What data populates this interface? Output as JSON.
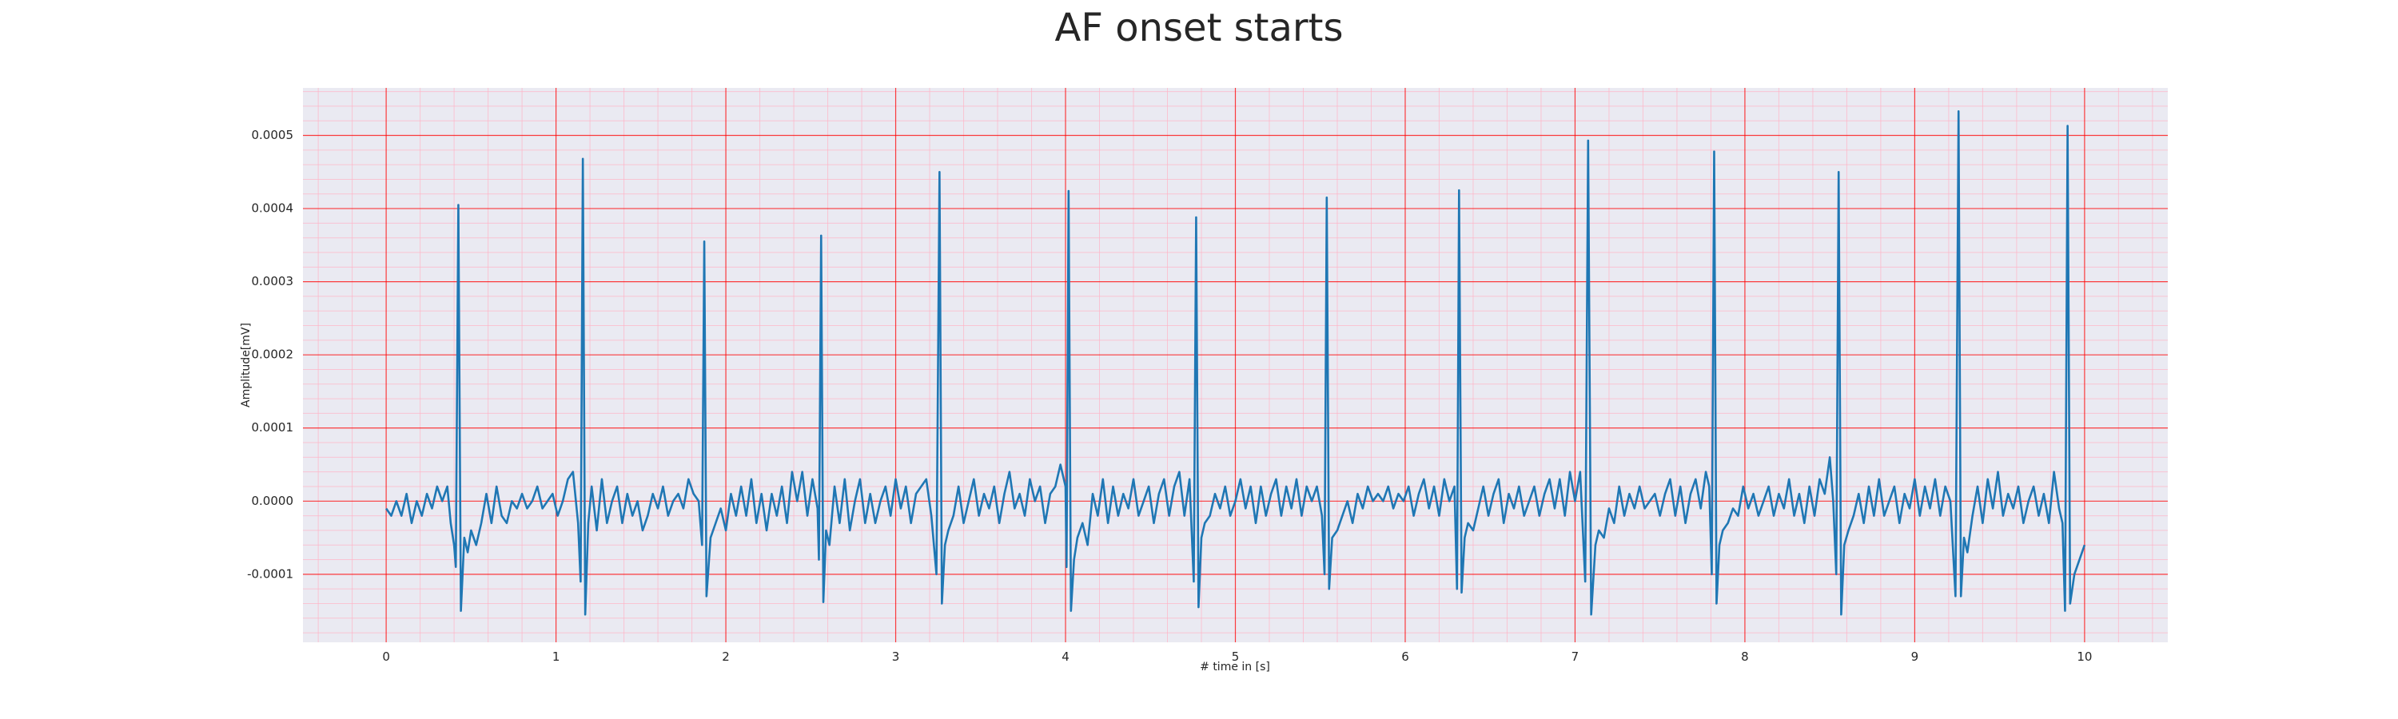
{
  "chart_data": {
    "type": "line",
    "title": "AF onset starts",
    "xlabel": "# time in [s]",
    "ylabel": "Amplitude[mV]",
    "color": "#1f77b4",
    "grid": true,
    "grid_color": "#ff0000",
    "minor_grid": {
      "x": 5,
      "y": 5,
      "color": "#ffb3c6"
    },
    "background": "#eaeaf2",
    "xlim": [
      -0.49,
      10.49
    ],
    "ylim": [
      -0.000193,
      0.000565
    ],
    "xticks": [
      0,
      1,
      2,
      3,
      4,
      5,
      6,
      7,
      8,
      9,
      10
    ],
    "yticks": [
      -0.0001,
      {
        "value": 0,
        "label": "0.0000"
      },
      0.0001,
      0.0002,
      0.0003,
      0.0004,
      0.0005
    ],
    "x": [
      0,
      0.03,
      0.06,
      0.09,
      0.12,
      0.15,
      0.18,
      0.21,
      0.24,
      0.27,
      0.3,
      0.33,
      0.36,
      0.38,
      0.4,
      0.41,
      0.425,
      0.44,
      0.46,
      0.48,
      0.5,
      0.53,
      0.56,
      0.59,
      0.62,
      0.65,
      0.68,
      0.71,
      0.74,
      0.77,
      0.8,
      0.83,
      0.86,
      0.89,
      0.92,
      0.95,
      0.98,
      1.01,
      1.04,
      1.07,
      1.1,
      1.13,
      1.145,
      1.158,
      1.172,
      1.19,
      1.21,
      1.24,
      1.27,
      1.3,
      1.33,
      1.36,
      1.39,
      1.42,
      1.45,
      1.48,
      1.51,
      1.54,
      1.57,
      1.6,
      1.63,
      1.66,
      1.69,
      1.72,
      1.75,
      1.78,
      1.81,
      1.84,
      1.86,
      1.873,
      1.886,
      1.91,
      1.94,
      1.97,
      2.0,
      2.03,
      2.06,
      2.09,
      2.12,
      2.15,
      2.18,
      2.21,
      2.24,
      2.27,
      2.3,
      2.33,
      2.36,
      2.39,
      2.42,
      2.45,
      2.48,
      2.51,
      2.54,
      2.548,
      2.561,
      2.574,
      2.59,
      2.61,
      2.64,
      2.67,
      2.7,
      2.73,
      2.76,
      2.79,
      2.82,
      2.85,
      2.88,
      2.91,
      2.94,
      2.97,
      3.0,
      3.03,
      3.06,
      3.09,
      3.12,
      3.15,
      3.18,
      3.21,
      3.24,
      3.258,
      3.272,
      3.29,
      3.31,
      3.34,
      3.37,
      3.4,
      3.43,
      3.46,
      3.49,
      3.52,
      3.55,
      3.58,
      3.61,
      3.64,
      3.67,
      3.7,
      3.73,
      3.76,
      3.79,
      3.82,
      3.85,
      3.88,
      3.91,
      3.94,
      3.97,
      4.0,
      4.006,
      4.018,
      4.032,
      4.05,
      4.07,
      4.1,
      4.13,
      4.16,
      4.19,
      4.22,
      4.25,
      4.28,
      4.31,
      4.34,
      4.37,
      4.4,
      4.43,
      4.46,
      4.49,
      4.52,
      4.55,
      4.58,
      4.61,
      4.64,
      4.67,
      4.7,
      4.73,
      4.755,
      4.769,
      4.783,
      4.8,
      4.82,
      4.85,
      4.88,
      4.91,
      4.94,
      4.97,
      5.0,
      5.03,
      5.06,
      5.09,
      5.12,
      5.15,
      5.18,
      5.21,
      5.24,
      5.27,
      5.3,
      5.33,
      5.36,
      5.39,
      5.42,
      5.45,
      5.48,
      5.51,
      5.525,
      5.538,
      5.552,
      5.57,
      5.6,
      5.63,
      5.66,
      5.69,
      5.72,
      5.75,
      5.78,
      5.81,
      5.84,
      5.87,
      5.9,
      5.93,
      5.96,
      5.99,
      6.02,
      6.05,
      6.08,
      6.11,
      6.14,
      6.17,
      6.2,
      6.23,
      6.26,
      6.29,
      6.305,
      6.317,
      6.332,
      6.35,
      6.37,
      6.4,
      6.43,
      6.46,
      6.49,
      6.52,
      6.55,
      6.58,
      6.61,
      6.64,
      6.67,
      6.7,
      6.73,
      6.76,
      6.79,
      6.82,
      6.85,
      6.88,
      6.91,
      6.94,
      6.97,
      7.0,
      7.03,
      7.06,
      7.077,
      7.095,
      7.12,
      7.14,
      7.17,
      7.2,
      7.23,
      7.26,
      7.29,
      7.32,
      7.35,
      7.38,
      7.41,
      7.44,
      7.47,
      7.5,
      7.53,
      7.56,
      7.59,
      7.62,
      7.65,
      7.68,
      7.71,
      7.74,
      7.77,
      7.79,
      7.805,
      7.819,
      7.833,
      7.85,
      7.87,
      7.9,
      7.93,
      7.96,
      7.99,
      8.02,
      8.05,
      8.08,
      8.11,
      8.14,
      8.17,
      8.2,
      8.23,
      8.26,
      8.29,
      8.32,
      8.35,
      8.38,
      8.41,
      8.44,
      8.47,
      8.5,
      8.52,
      8.538,
      8.552,
      8.567,
      8.585,
      8.61,
      8.64,
      8.67,
      8.7,
      8.73,
      8.76,
      8.79,
      8.82,
      8.85,
      8.88,
      8.91,
      8.94,
      8.97,
      9.0,
      9.03,
      9.06,
      9.09,
      9.12,
      9.15,
      9.18,
      9.21,
      9.24,
      9.258,
      9.272,
      9.29,
      9.31,
      9.34,
      9.37,
      9.4,
      9.43,
      9.46,
      9.49,
      9.52,
      9.55,
      9.58,
      9.61,
      9.64,
      9.67,
      9.7,
      9.73,
      9.76,
      9.79,
      9.82,
      9.85,
      9.87,
      9.885,
      9.9,
      9.915,
      9.94,
      9.97,
      10.0
    ],
    "values": [
      -1e-05,
      -2e-05,
      0,
      -2e-05,
      1e-05,
      -3e-05,
      0,
      -2e-05,
      1e-05,
      -1e-05,
      2e-05,
      0,
      2e-05,
      -3e-05,
      -6e-05,
      -9e-05,
      0.000405,
      -0.00015,
      -5e-05,
      -7e-05,
      -4e-05,
      -6e-05,
      -3e-05,
      1e-05,
      -3e-05,
      2e-05,
      -2e-05,
      -3e-05,
      0,
      -1e-05,
      1e-05,
      -1e-05,
      0,
      2e-05,
      -1e-05,
      0,
      1e-05,
      -2e-05,
      0,
      3e-05,
      4e-05,
      -3e-05,
      -0.00011,
      0.000468,
      -0.000155,
      -3e-05,
      2e-05,
      -4e-05,
      3e-05,
      -3e-05,
      0,
      2e-05,
      -3e-05,
      1e-05,
      -2e-05,
      0,
      -4e-05,
      -2e-05,
      1e-05,
      -1e-05,
      2e-05,
      -2e-05,
      0,
      1e-05,
      -1e-05,
      3e-05,
      1e-05,
      0,
      -6e-05,
      0.000355,
      -0.00013,
      -5e-05,
      -3e-05,
      -1e-05,
      -4e-05,
      1e-05,
      -2e-05,
      2e-05,
      -2e-05,
      3e-05,
      -3e-05,
      1e-05,
      -4e-05,
      1e-05,
      -2e-05,
      2e-05,
      -3e-05,
      4e-05,
      0,
      4e-05,
      -2e-05,
      3e-05,
      -1e-05,
      -8e-05,
      0.000363,
      -0.000138,
      -4e-05,
      -6e-05,
      2e-05,
      -3e-05,
      3e-05,
      -4e-05,
      0,
      3e-05,
      -3e-05,
      1e-05,
      -3e-05,
      0,
      2e-05,
      -2e-05,
      3e-05,
      -1e-05,
      2e-05,
      -3e-05,
      1e-05,
      2e-05,
      3e-05,
      -2e-05,
      -0.0001,
      0.00045,
      -0.00014,
      -6e-05,
      -4e-05,
      -2e-05,
      2e-05,
      -3e-05,
      0,
      3e-05,
      -2e-05,
      1e-05,
      -1e-05,
      2e-05,
      -3e-05,
      1e-05,
      4e-05,
      -1e-05,
      1e-05,
      -2e-05,
      3e-05,
      0,
      2e-05,
      -3e-05,
      1e-05,
      2e-05,
      5e-05,
      2e-05,
      -9e-05,
      0.000424,
      -0.00015,
      -8e-05,
      -5e-05,
      -3e-05,
      -6e-05,
      1e-05,
      -2e-05,
      3e-05,
      -3e-05,
      2e-05,
      -2e-05,
      1e-05,
      -1e-05,
      3e-05,
      -2e-05,
      0,
      2e-05,
      -3e-05,
      1e-05,
      3e-05,
      -2e-05,
      2e-05,
      4e-05,
      -2e-05,
      3e-05,
      -0.00011,
      0.000388,
      -0.000145,
      -5e-05,
      -3e-05,
      -2e-05,
      1e-05,
      -1e-05,
      2e-05,
      -2e-05,
      0,
      3e-05,
      -1e-05,
      2e-05,
      -3e-05,
      2e-05,
      -2e-05,
      1e-05,
      3e-05,
      -2e-05,
      2e-05,
      -1e-05,
      3e-05,
      -2e-05,
      2e-05,
      0,
      2e-05,
      -2e-05,
      -0.0001,
      0.000415,
      -0.00012,
      -5e-05,
      -4e-05,
      -2e-05,
      0,
      -3e-05,
      1e-05,
      -1e-05,
      2e-05,
      0,
      1e-05,
      0,
      2e-05,
      -1e-05,
      1e-05,
      0,
      2e-05,
      -2e-05,
      1e-05,
      3e-05,
      -1e-05,
      2e-05,
      -2e-05,
      3e-05,
      0,
      2e-05,
      -0.00012,
      0.000425,
      -0.000125,
      -5e-05,
      -3e-05,
      -4e-05,
      -1e-05,
      2e-05,
      -2e-05,
      1e-05,
      3e-05,
      -3e-05,
      1e-05,
      -1e-05,
      2e-05,
      -2e-05,
      0,
      2e-05,
      -2e-05,
      1e-05,
      3e-05,
      -1e-05,
      3e-05,
      -2e-05,
      4e-05,
      0,
      4e-05,
      -0.00011,
      0.000493,
      -0.000155,
      -6e-05,
      -4e-05,
      -5e-05,
      -1e-05,
      -3e-05,
      2e-05,
      -2e-05,
      1e-05,
      -1e-05,
      2e-05,
      -1e-05,
      0,
      1e-05,
      -2e-05,
      1e-05,
      3e-05,
      -2e-05,
      2e-05,
      -3e-05,
      1e-05,
      3e-05,
      -1e-05,
      4e-05,
      2e-05,
      -0.0001,
      0.000478,
      -0.00014,
      -6e-05,
      -4e-05,
      -3e-05,
      -1e-05,
      -2e-05,
      2e-05,
      -1e-05,
      1e-05,
      -2e-05,
      0,
      2e-05,
      -2e-05,
      1e-05,
      -1e-05,
      3e-05,
      -2e-05,
      1e-05,
      -3e-05,
      2e-05,
      -2e-05,
      3e-05,
      1e-05,
      6e-05,
      0,
      -0.0001,
      0.00045,
      -0.000155,
      -6e-05,
      -4e-05,
      -2e-05,
      1e-05,
      -3e-05,
      2e-05,
      -2e-05,
      3e-05,
      -2e-05,
      0,
      2e-05,
      -3e-05,
      1e-05,
      -1e-05,
      3e-05,
      -2e-05,
      2e-05,
      -1e-05,
      3e-05,
      -2e-05,
      2e-05,
      0,
      -0.00013,
      0.000533,
      -0.00013,
      -5e-05,
      -7e-05,
      -2e-05,
      2e-05,
      -3e-05,
      3e-05,
      -1e-05,
      4e-05,
      -2e-05,
      1e-05,
      -1e-05,
      2e-05,
      -3e-05,
      0,
      2e-05,
      -2e-05,
      1e-05,
      -3e-05,
      4e-05,
      -1e-05,
      -3e-05,
      -0.00015,
      0.000513,
      -0.00014,
      -0.0001,
      -8e-05,
      -6e-05
    ]
  }
}
